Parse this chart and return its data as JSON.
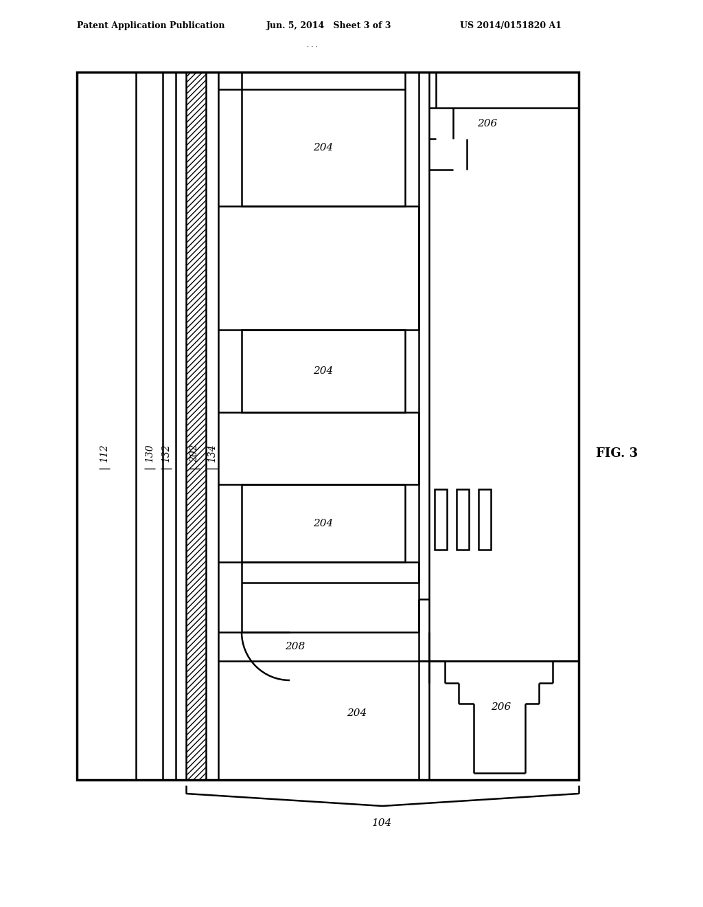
{
  "header_left": "Patent Application Publication",
  "header_center": "Jun. 5, 2014   Sheet 3 of 3",
  "header_right": "US 2014/0151820 A1",
  "fig_label": "FIG. 3",
  "label_104": "104",
  "label_112": "112",
  "label_130": "130",
  "label_132": "132",
  "label_202": "202",
  "label_134": "134",
  "label_204": "204",
  "label_206": "206",
  "label_208": "208",
  "bg_color": "#ffffff",
  "lc": "#000000",
  "dots": ". . ."
}
